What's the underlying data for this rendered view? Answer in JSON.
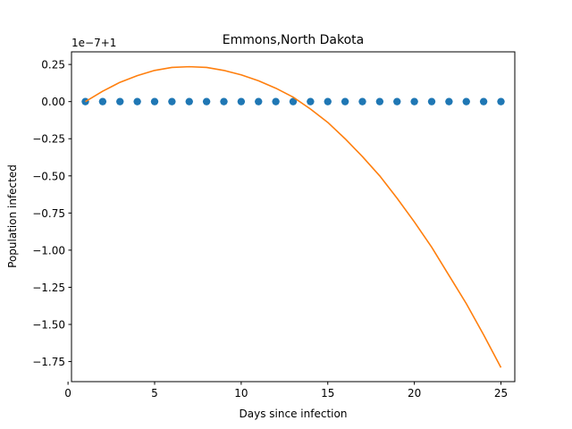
{
  "chart_data": {
    "type": "scatter",
    "title": "Emmons,North Dakota",
    "xlabel": "Days since infection",
    "ylabel": "Population infected",
    "offset_label": "1e−7+1",
    "xlim": [
      0.2,
      25.8
    ],
    "ylim": [
      -1.885,
      0.335
    ],
    "x_ticks": [
      0,
      5,
      10,
      15,
      20,
      25
    ],
    "x_tick_labels": [
      "0",
      "5",
      "10",
      "15",
      "20",
      "25"
    ],
    "y_ticks": [
      0.25,
      0.0,
      -0.25,
      -0.5,
      -0.75,
      -1.0,
      -1.25,
      -1.5,
      -1.75
    ],
    "y_tick_labels": [
      "0.25",
      "0.00",
      "−0.25",
      "−0.50",
      "−0.75",
      "−1.00",
      "−1.25",
      "−1.50",
      "−1.75"
    ],
    "grid": false,
    "series": [
      {
        "kind": "scatter",
        "color": "#1f77b4",
        "x": [
          1,
          2,
          3,
          4,
          5,
          6,
          7,
          8,
          9,
          10,
          11,
          12,
          13,
          14,
          15,
          16,
          17,
          18,
          19,
          20,
          21,
          22,
          23,
          24,
          25
        ],
        "y": [
          0,
          0,
          0,
          0,
          0,
          0,
          0,
          0,
          0,
          0,
          0,
          0,
          0,
          0,
          0,
          0,
          0,
          0,
          0,
          0,
          0,
          0,
          0,
          0,
          0
        ]
      },
      {
        "kind": "line",
        "color": "#ff7f0e",
        "x": [
          1,
          2,
          3,
          4,
          5,
          6,
          7,
          8,
          9,
          10,
          11,
          12,
          13,
          14,
          15,
          16,
          17,
          18,
          19,
          20,
          21,
          22,
          23,
          24,
          25
        ],
        "y": [
          0.0,
          0.07,
          0.13,
          0.175,
          0.21,
          0.23,
          0.235,
          0.23,
          0.21,
          0.18,
          0.14,
          0.09,
          0.03,
          -0.05,
          -0.14,
          -0.25,
          -0.37,
          -0.5,
          -0.65,
          -0.81,
          -0.98,
          -1.17,
          -1.36,
          -1.57,
          -1.79
        ]
      }
    ]
  }
}
